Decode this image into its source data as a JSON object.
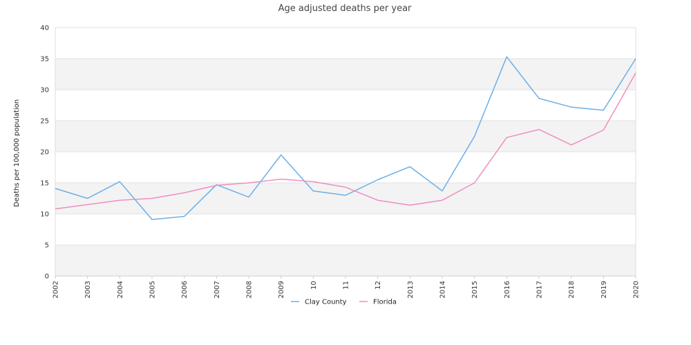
{
  "chart_data": {
    "type": "line",
    "title": "Age adjusted deaths per year",
    "ylabel": "Deaths per 100,000 population",
    "xlabel": "",
    "categories": [
      "2002",
      "2003",
      "2004",
      "2005",
      "2006",
      "2007",
      "2008",
      "2009",
      "10",
      "11",
      "12",
      "2013",
      "2014",
      "2015",
      "2016",
      "2017",
      "2018",
      "2019",
      "2020"
    ],
    "ylim": [
      0,
      40
    ],
    "yticks": [
      "0",
      "5",
      "10",
      "15",
      "20",
      "25",
      "30",
      "35",
      "40"
    ],
    "grid": "horizontal-bands",
    "legend": "bottom",
    "series": [
      {
        "name": "Clay County",
        "color": "#6aaee8",
        "values": [
          14.1,
          12.5,
          15.2,
          9.1,
          9.6,
          14.7,
          12.7,
          19.5,
          13.7,
          13.0,
          15.5,
          17.6,
          13.7,
          22.5,
          35.3,
          28.6,
          27.2,
          26.7,
          35.0
        ]
      },
      {
        "name": "Florida",
        "color": "#ee8ec0",
        "values": [
          10.8,
          11.5,
          12.2,
          12.5,
          13.4,
          14.6,
          15.0,
          15.6,
          15.2,
          14.3,
          12.2,
          11.4,
          12.2,
          15.0,
          22.3,
          23.6,
          21.1,
          23.5,
          32.7
        ]
      }
    ]
  }
}
